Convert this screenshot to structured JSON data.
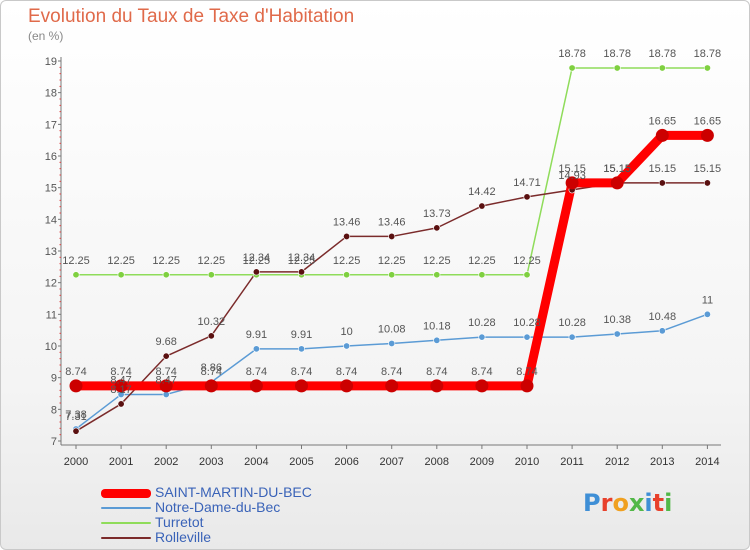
{
  "header": {
    "title": "Evolution du Taux de Taxe d'Habitation",
    "unit_label": "(en %)"
  },
  "logo": {
    "text": "Proxiti"
  },
  "chart_data": {
    "type": "line",
    "title": "Evolution du Taux de Taxe d'Habitation",
    "ylabel": "(en %)",
    "xlabel": "",
    "x": [
      "2000",
      "2001",
      "2002",
      "2003",
      "2004",
      "2005",
      "2006",
      "2007",
      "2008",
      "2009",
      "2010",
      "2011",
      "2012",
      "2013",
      "2014"
    ],
    "ylim": [
      7,
      19
    ],
    "yticks": [
      7,
      8,
      9,
      10,
      11,
      12,
      13,
      14,
      15,
      16,
      17,
      18,
      19
    ],
    "grid": false,
    "legend_position": "bottom-left",
    "series": [
      {
        "name": "SAINT-MARTIN-DU-BEC",
        "color": "#ff0000",
        "marker_color": "#cc0000",
        "width": 9,
        "values": [
          8.74,
          8.74,
          8.74,
          8.74,
          8.74,
          8.74,
          8.74,
          8.74,
          8.74,
          8.74,
          8.74,
          15.15,
          15.15,
          16.65,
          16.65
        ],
        "labels": [
          "8.74",
          "8.74",
          "8.74",
          "8.74",
          "8.74",
          "8.74",
          "8.74",
          "8.74",
          "8.74",
          "8.74",
          "8.74",
          "15.15",
          "15.15",
          "16.65",
          "16.65"
        ]
      },
      {
        "name": "Notre-Dame-du-Bec",
        "color": "#5b9bd5",
        "marker_color": "#5b9bd5",
        "width": 1.5,
        "values": [
          7.38,
          8.47,
          8.47,
          8.86,
          9.91,
          9.91,
          10,
          10.08,
          10.18,
          10.28,
          10.28,
          10.28,
          10.38,
          10.48,
          11
        ],
        "labels": [
          "7.38",
          "8.47",
          "8.47",
          "8.86",
          "9.91",
          "9.91",
          "10",
          "10.08",
          "10.18",
          "10.28",
          "10.28",
          "10.28",
          "10.38",
          "10.48",
          "11"
        ]
      },
      {
        "name": "Turretot",
        "color": "#8fdc5a",
        "marker_color": "#7fd040",
        "width": 1.5,
        "values": [
          12.25,
          12.25,
          12.25,
          12.25,
          12.25,
          12.25,
          12.25,
          12.25,
          12.25,
          12.25,
          12.25,
          18.78,
          18.78,
          18.78,
          18.78
        ],
        "labels": [
          "12.25",
          "12.25",
          "12.25",
          "12.25",
          "12.25",
          "12.25",
          "12.25",
          "12.25",
          "12.25",
          "12.25",
          "12.25",
          "18.78",
          "18.78",
          "18.78",
          "18.78"
        ]
      },
      {
        "name": "Rolleville",
        "color": "#7b2b2b",
        "marker_color": "#5a1010",
        "width": 1.5,
        "values": [
          7.31,
          8.17,
          9.68,
          10.32,
          12.34,
          12.34,
          13.46,
          13.46,
          13.73,
          14.42,
          14.71,
          14.93,
          15.15,
          15.15,
          15.15
        ],
        "labels": [
          "7.31",
          "8.17",
          "9.68",
          "10.32",
          "12.34",
          "12.34",
          "13.46",
          "13.46",
          "13.73",
          "14.42",
          "14.71",
          "14.93",
          "15.15",
          "15.15",
          "15.15"
        ]
      }
    ]
  }
}
